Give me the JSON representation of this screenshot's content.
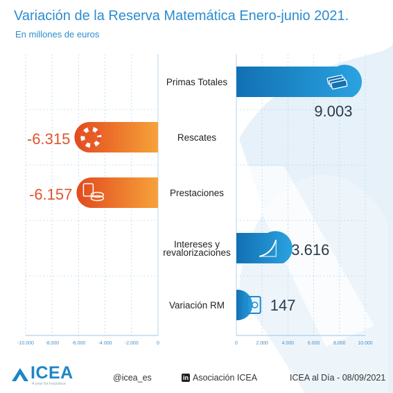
{
  "header": {
    "title": "Variación de la Reserva Matemática Enero-junio 2021.",
    "subtitle": "En millones de euros"
  },
  "chart_data": {
    "type": "bar",
    "orientation": "horizontal",
    "title": "Variación de la Reserva Matemática Enero-junio 2021.",
    "subtitle": "En millones de euros",
    "categories": [
      "Primas Totales",
      "Rescates",
      "Prestaciones",
      "Intereses y revalorizaciones",
      "Variación RM"
    ],
    "category_lines": [
      [
        "Primas Totales"
      ],
      [
        "Rescates"
      ],
      [
        "Prestaciones"
      ],
      [
        "Intereses y",
        "revalorizaciones"
      ],
      [
        "Variación RM"
      ]
    ],
    "values": [
      9003,
      -6315,
      -6157,
      3616,
      147
    ],
    "value_labels": [
      "9.003",
      "-6.315",
      "-6.157",
      "3.616",
      "147"
    ],
    "icons": [
      "banknotes-icon",
      "lifebuoy-icon",
      "coins-calculator-icon",
      "growth-curve-icon",
      "safe-icon"
    ],
    "xlim_negative": [
      -10000,
      0
    ],
    "xlim_positive": [
      0,
      10000
    ],
    "ticks_negative": [
      -10000,
      -8000,
      -6000,
      -4000,
      -2000,
      0
    ],
    "ticks_negative_labels": [
      "-10.000",
      "-8.000",
      "-6.000",
      "-4.000",
      "-2.000",
      "0"
    ],
    "ticks_positive": [
      0,
      2000,
      4000,
      6000,
      8000,
      10000
    ],
    "ticks_positive_labels": [
      "0",
      "2.000",
      "4.000",
      "6.000",
      "8.000",
      "10.000"
    ],
    "grid": true,
    "colors": {
      "positive_dark": "#1270b4",
      "positive_light": "#2aa3e0",
      "negative_dark": "#e24a1e",
      "negative_light": "#f6a23a",
      "negative_label": "#e0522e",
      "positive_label": "#2a3a4a",
      "grid": "#b8d6ec"
    }
  },
  "footer": {
    "logo": "ICEA",
    "tagline": "A year for insurance",
    "twitter": "@icea_es",
    "linkedin_badge": "in",
    "linkedin": "Asociación ICEA",
    "source": "ICEA al Día - 08/09/2021"
  }
}
